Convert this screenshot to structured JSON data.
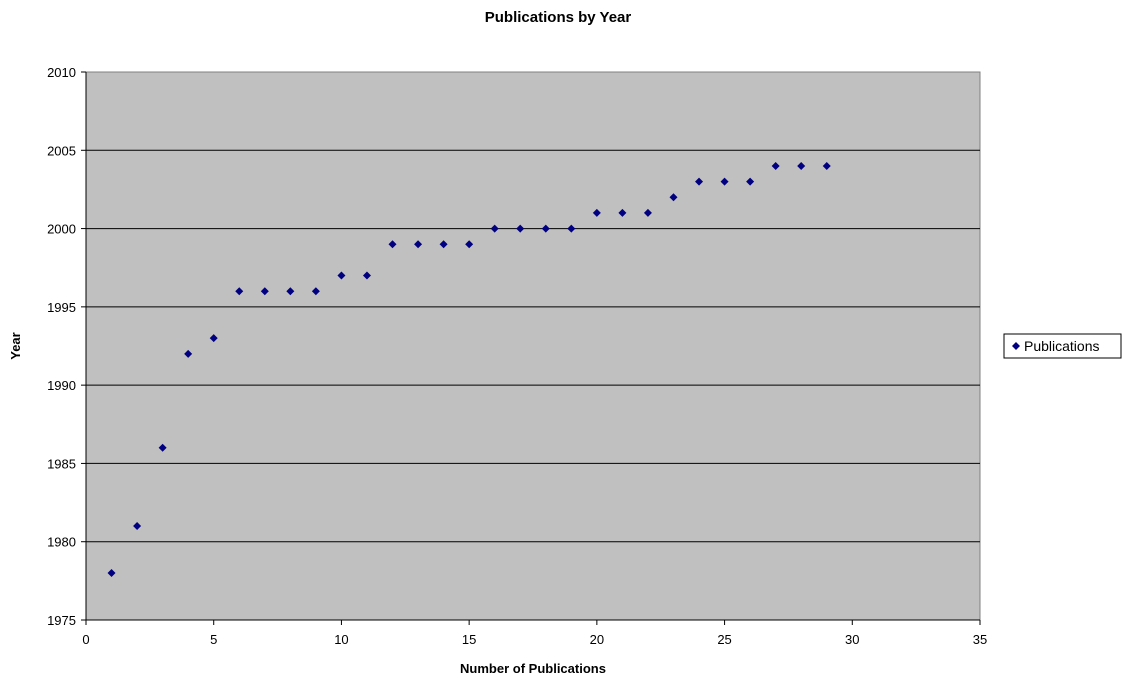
{
  "chart_data": {
    "type": "scatter",
    "title": "Publications by Year",
    "xlabel": "Number of Publications",
    "ylabel": "Year",
    "xlim": [
      0,
      35
    ],
    "ylim": [
      1975,
      2010
    ],
    "x_ticks": [
      "0",
      "5",
      "10",
      "15",
      "20",
      "25",
      "30",
      "35"
    ],
    "y_ticks": [
      "1975",
      "1980",
      "1985",
      "1990",
      "1995",
      "2000",
      "2005",
      "2010"
    ],
    "grid": "horizontal",
    "plot_background": "#c0c0c0",
    "marker_color": "#000080",
    "marker": "diamond",
    "legend_position": "right",
    "series": [
      {
        "name": "Publications",
        "x": [
          1,
          2,
          3,
          4,
          5,
          6,
          7,
          8,
          9,
          10,
          11,
          12,
          13,
          14,
          15,
          16,
          17,
          18,
          19,
          20,
          21,
          22,
          23,
          24,
          25,
          26,
          27,
          28,
          29
        ],
        "y": [
          1978,
          1981,
          1986,
          1992,
          1993,
          1996,
          1996,
          1996,
          1996,
          1997,
          1997,
          1999,
          1999,
          1999,
          1999,
          2000,
          2000,
          2000,
          2000,
          2001,
          2001,
          2001,
          2002,
          2003,
          2003,
          2003,
          2004,
          2004,
          2004
        ]
      }
    ]
  }
}
